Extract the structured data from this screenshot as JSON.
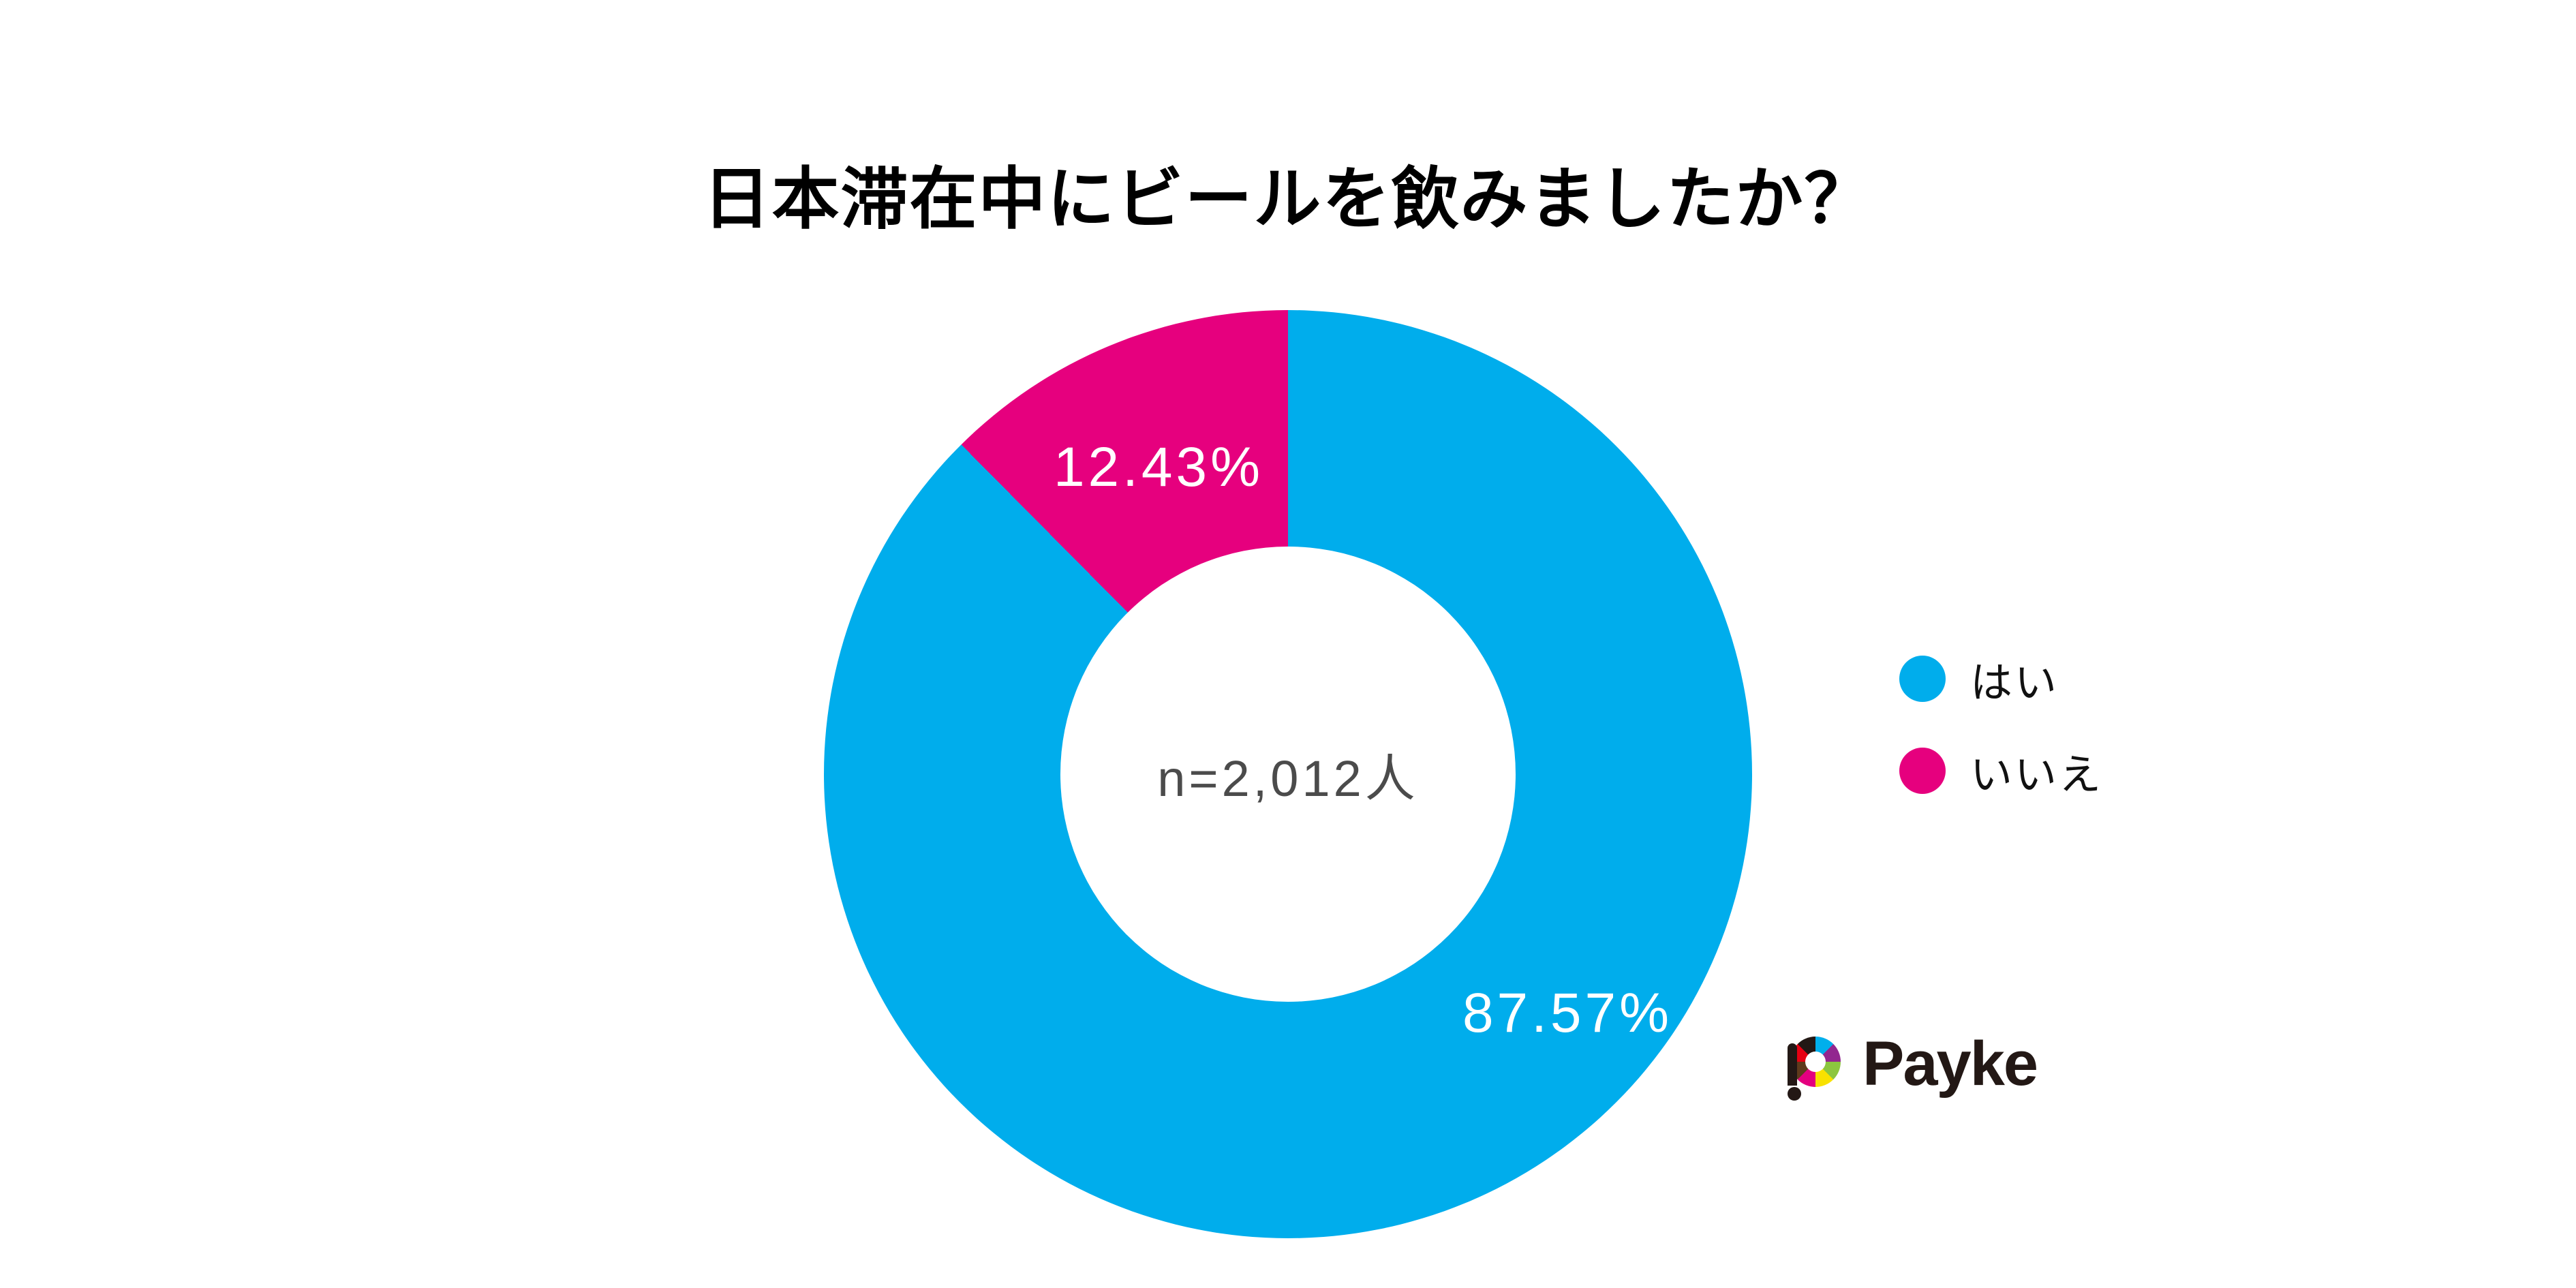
{
  "title": "日本滞在中にビールを飲みましたか？",
  "chart_data": {
    "type": "pie",
    "variant": "donut",
    "title": "日本滞在中にビールを飲みましたか？",
    "center_label": "n=2,012人",
    "sample_size": 2012,
    "categories": [
      "はい",
      "いいえ"
    ],
    "values": [
      87.57,
      12.43
    ],
    "value_labels": [
      "87.57%",
      "12.43%"
    ],
    "colors": [
      "#00ADEC",
      "#E6007E"
    ],
    "label_text_color": "#ffffff",
    "start_angle_deg": 0,
    "direction": "clockwise",
    "legend_position": "right",
    "donut_hole_ratio": 0.49
  },
  "legend": {
    "items": [
      {
        "label": "はい",
        "color": "#00ADEC"
      },
      {
        "label": "いいえ",
        "color": "#E6007E"
      }
    ]
  },
  "logo": {
    "text": "Payke",
    "text_color": "#231815",
    "ring_colors": [
      "#00AFEC",
      "#92278F",
      "#8CC63F",
      "#F8E100",
      "#E4007F",
      "#5F3A1C",
      "#E60012",
      "#231815"
    ]
  }
}
